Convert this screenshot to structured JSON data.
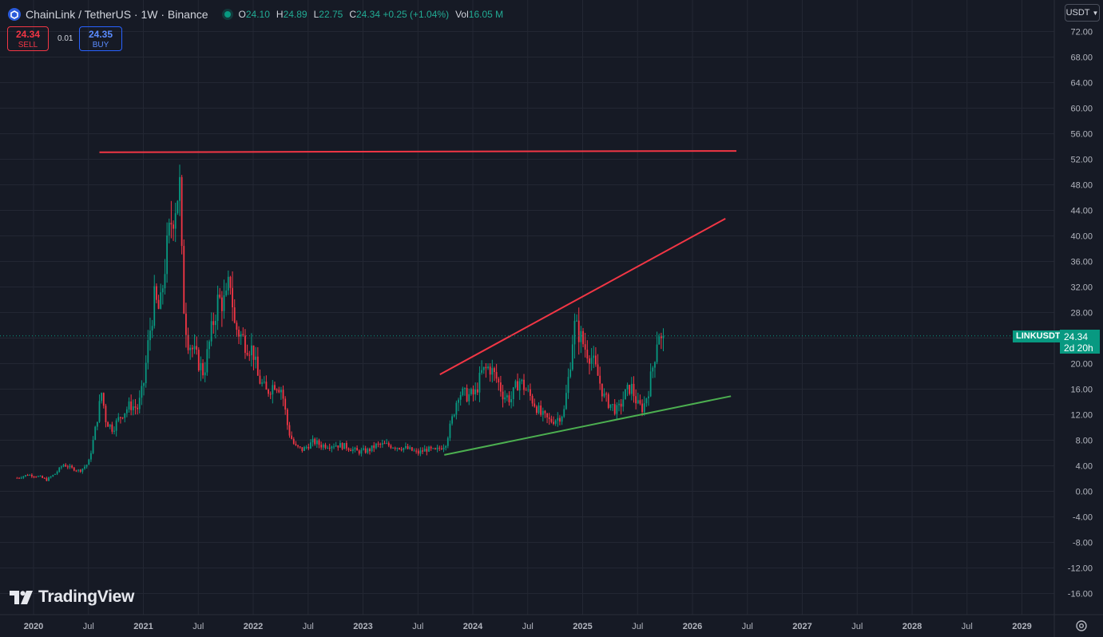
{
  "header": {
    "title": "ChainLink / TetherUS · 1W · Binance",
    "ohlc": [
      {
        "key": "O",
        "value": "24.10"
      },
      {
        "key": "H",
        "value": "24.89"
      },
      {
        "key": "L",
        "value": "22.75"
      },
      {
        "key": "C",
        "value": "24.34 +0.25 (+1.04%)"
      },
      {
        "key": "Vol",
        "value": "16.05 M"
      }
    ]
  },
  "trade": {
    "sell_price": "24.34",
    "sell_label": "SELL",
    "spread": "0.01",
    "buy_price": "24.35",
    "buy_label": "BUY"
  },
  "currency_selector": "USDT",
  "last_price": {
    "symbol": "LINKUSDT",
    "price": "24.34",
    "countdown": "2d 20h",
    "value": 24.34
  },
  "watermark": "TradingView",
  "colors": {
    "background": "#161a25",
    "grid": "#232733",
    "up": "#089981",
    "down": "#f23645",
    "resistance_line": "#f23645",
    "support_line": "#4caf50"
  },
  "chart_data": {
    "type": "candlestick",
    "timeframe": "1W",
    "y_axis_labels": [
      "72.00",
      "68.00",
      "64.00",
      "60.00",
      "56.00",
      "52.00",
      "48.00",
      "44.00",
      "40.00",
      "36.00",
      "32.00",
      "28.00",
      "24.00",
      "20.00",
      "16.00",
      "12.00",
      "8.00",
      "4.00",
      "0.00",
      "-4.00",
      "-8.00",
      "-12.00",
      "-16.00"
    ],
    "x_axis_labels": [
      "2020",
      "Jul",
      "2021",
      "Jul",
      "2022",
      "Jul",
      "2023",
      "Jul",
      "2024",
      "Jul",
      "2025",
      "Jul",
      "2026",
      "Jul",
      "2027",
      "Jul",
      "2028",
      "Jul",
      "2029"
    ],
    "ylim": [
      -18,
      75
    ],
    "xlim": [
      2019.85,
      2029.6
    ],
    "grid": true,
    "price_path": [
      [
        2019.85,
        2.1
      ],
      [
        2019.95,
        2.6
      ],
      [
        2020.05,
        2.3
      ],
      [
        2020.12,
        1.8
      ],
      [
        2020.2,
        2.8
      ],
      [
        2020.27,
        4.2
      ],
      [
        2020.35,
        3.6
      ],
      [
        2020.42,
        3.2
      ],
      [
        2020.5,
        4.4
      ],
      [
        2020.55,
        8.5
      ],
      [
        2020.62,
        15.5
      ],
      [
        2020.66,
        11.0
      ],
      [
        2020.72,
        9.8
      ],
      [
        2020.8,
        12.0
      ],
      [
        2020.88,
        13.5
      ],
      [
        2020.95,
        13.0
      ],
      [
        2021.0,
        16.5
      ],
      [
        2021.05,
        24.0
      ],
      [
        2021.1,
        30.0
      ],
      [
        2021.15,
        28.0
      ],
      [
        2021.2,
        36.0
      ],
      [
        2021.25,
        42.0
      ],
      [
        2021.33,
        48.0
      ],
      [
        2021.36,
        30.5
      ],
      [
        2021.4,
        24.0
      ],
      [
        2021.48,
        21.0
      ],
      [
        2021.55,
        18.5
      ],
      [
        2021.63,
        26.0
      ],
      [
        2021.68,
        30.0
      ],
      [
        2021.75,
        29.5
      ],
      [
        2021.79,
        33.5
      ],
      [
        2021.83,
        26.0
      ],
      [
        2021.92,
        23.5
      ],
      [
        2022.0,
        22.0
      ],
      [
        2022.04,
        18.0
      ],
      [
        2022.12,
        15.5
      ],
      [
        2022.2,
        17.0
      ],
      [
        2022.26,
        16.0
      ],
      [
        2022.32,
        9.5
      ],
      [
        2022.38,
        7.0
      ],
      [
        2022.45,
        6.5
      ],
      [
        2022.55,
        7.8
      ],
      [
        2022.62,
        7.2
      ],
      [
        2022.75,
        7.3
      ],
      [
        2022.85,
        7.0
      ],
      [
        2022.95,
        6.2
      ],
      [
        2023.05,
        6.4
      ],
      [
        2023.12,
        7.2
      ],
      [
        2023.2,
        7.3
      ],
      [
        2023.3,
        7.0
      ],
      [
        2023.4,
        6.7
      ],
      [
        2023.5,
        6.0
      ],
      [
        2023.58,
        6.6
      ],
      [
        2023.66,
        6.3
      ],
      [
        2023.75,
        7.4
      ],
      [
        2023.8,
        10.5
      ],
      [
        2023.87,
        15.5
      ],
      [
        2023.95,
        15.0
      ],
      [
        2024.02,
        15.2
      ],
      [
        2024.08,
        18.5
      ],
      [
        2024.15,
        19.5
      ],
      [
        2024.22,
        17.5
      ],
      [
        2024.28,
        15.0
      ],
      [
        2024.35,
        14.5
      ],
      [
        2024.42,
        17.5
      ],
      [
        2024.5,
        15.5
      ],
      [
        2024.56,
        13.8
      ],
      [
        2024.62,
        12.0
      ],
      [
        2024.7,
        11.0
      ],
      [
        2024.78,
        11.5
      ],
      [
        2024.83,
        12.5
      ],
      [
        2024.88,
        19.0
      ],
      [
        2024.92,
        26.0
      ],
      [
        2024.96,
        25.0
      ],
      [
        2025.02,
        22.5
      ],
      [
        2025.08,
        21.0
      ],
      [
        2025.14,
        18.0
      ],
      [
        2025.2,
        14.5
      ],
      [
        2025.26,
        13.5
      ],
      [
        2025.32,
        12.5
      ],
      [
        2025.38,
        15.0
      ],
      [
        2025.44,
        16.5
      ],
      [
        2025.5,
        13.5
      ],
      [
        2025.55,
        13.0
      ],
      [
        2025.6,
        16.0
      ],
      [
        2025.65,
        20.5
      ],
      [
        2025.69,
        25.5
      ],
      [
        2025.72,
        23.0
      ],
      [
        2025.75,
        24.34
      ]
    ],
    "trendlines": [
      {
        "role": "horizontal resistance",
        "color": "#f23645",
        "from": [
          2020.6,
          53.1
        ],
        "to": [
          2026.4,
          53.3
        ]
      },
      {
        "role": "rising resistance",
        "color": "#f23645",
        "from": [
          2023.7,
          18.3
        ],
        "to": [
          2026.3,
          42.7
        ]
      },
      {
        "role": "rising support",
        "color": "#4caf50",
        "from": [
          2023.74,
          5.7
        ],
        "to": [
          2026.35,
          14.9
        ]
      }
    ]
  }
}
